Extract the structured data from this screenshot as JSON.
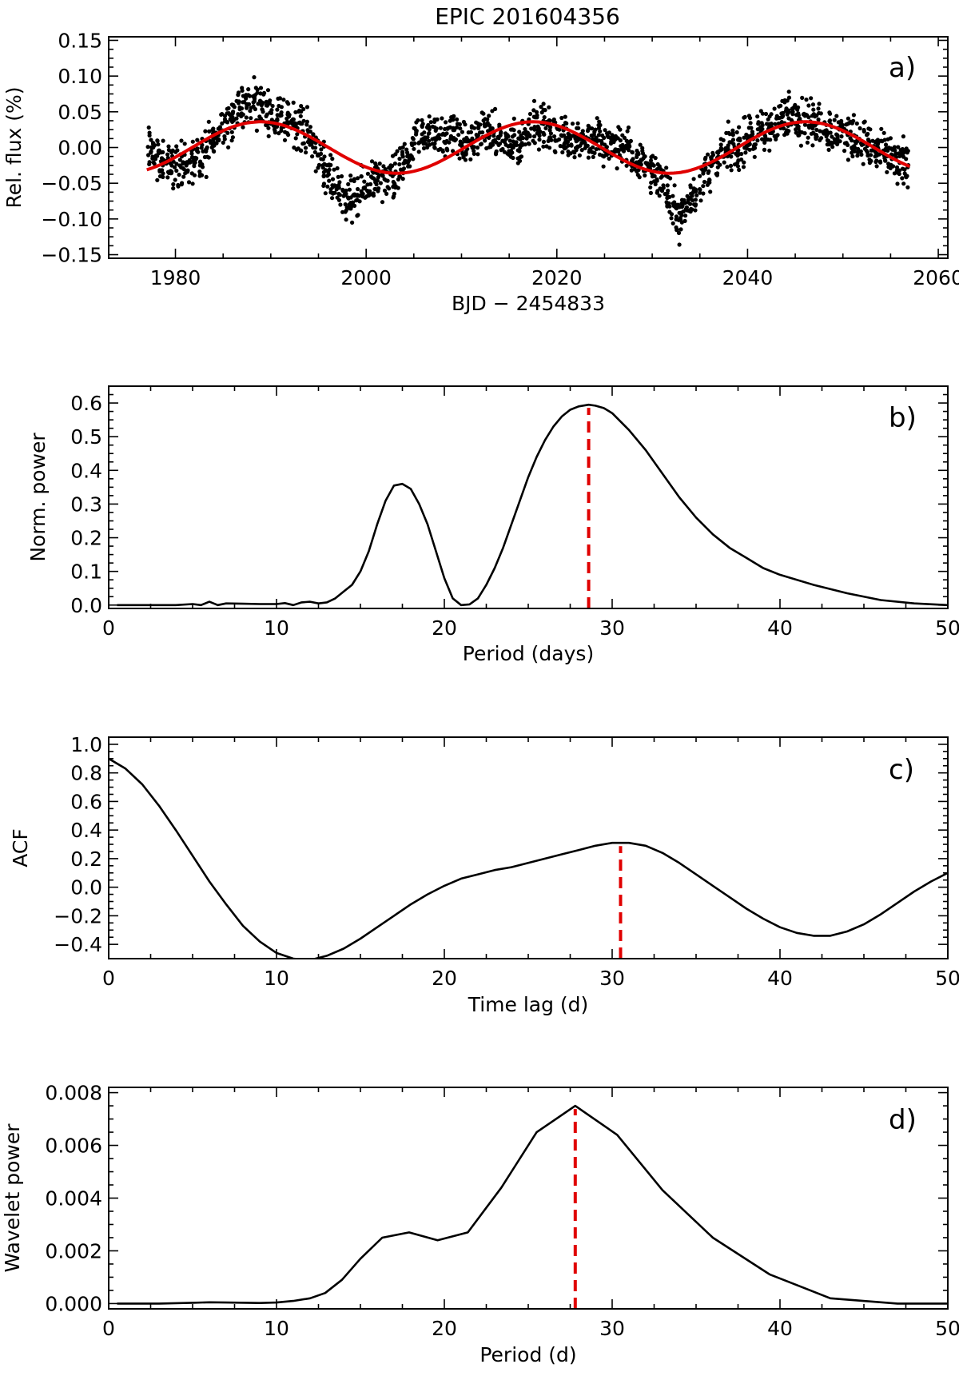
{
  "title": "EPIC 201604356",
  "chart_data": [
    {
      "id": "a",
      "type": "scatter",
      "panel_label": "a)",
      "xlabel": "BJD − 2454833",
      "ylabel": "Rel. flux (%)",
      "xlim": [
        1973,
        2061
      ],
      "ylim": [
        -0.155,
        0.155
      ],
      "xticks": [
        1980,
        2000,
        2020,
        2040,
        2060
      ],
      "xtick_labels": [
        "1980",
        "2000",
        "2020",
        "2040",
        "2060"
      ],
      "yticks": [
        -0.15,
        -0.1,
        -0.05,
        0.0,
        0.05,
        0.1,
        0.15
      ],
      "ytick_labels": [
        "−0.15",
        "−0.10",
        "−0.05",
        "0.00",
        "0.05",
        "0.10",
        "0.15"
      ],
      "series": [
        {
          "name": "light curve",
          "style": "points",
          "color": "#000000",
          "x": [
            1977,
            1978,
            1979,
            1980,
            1981,
            1982,
            1983,
            1984,
            1985,
            1986,
            1987,
            1988,
            1989,
            1990,
            1991,
            1992,
            1993,
            1994,
            1995,
            1996,
            1997,
            1998,
            1999,
            2000,
            2001,
            2002,
            2003,
            2004,
            2005,
            2006,
            2007,
            2008,
            2009,
            2010,
            2011,
            2012,
            2013,
            2014,
            2015,
            2016,
            2017,
            2018,
            2019,
            2020,
            2021,
            2022,
            2023,
            2024,
            2025,
            2026,
            2027,
            2028,
            2029,
            2030,
            2031,
            2032,
            2033,
            2034,
            2035,
            2036,
            2037,
            2038,
            2039,
            2040,
            2041,
            2042,
            2043,
            2044,
            2045,
            2046,
            2047,
            2048,
            2049,
            2050,
            2051,
            2052,
            2053,
            2054,
            2055,
            2056,
            2057
          ],
          "y": [
            0.0,
            -0.01,
            -0.03,
            -0.025,
            -0.02,
            -0.02,
            -0.01,
            0.01,
            0.03,
            0.045,
            0.055,
            0.065,
            0.06,
            0.05,
            0.04,
            0.035,
            0.03,
            0.02,
            -0.01,
            -0.04,
            -0.055,
            -0.07,
            -0.075,
            -0.05,
            -0.045,
            -0.05,
            -0.045,
            -0.02,
            0.0,
            0.02,
            0.02,
            0.01,
            0.025,
            0.005,
            0.0,
            0.03,
            0.02,
            0.01,
            0.005,
            0.0,
            0.035,
            0.03,
            0.025,
            0.02,
            0.015,
            0.015,
            0.01,
            0.01,
            0.005,
            0.0,
            0.0,
            -0.01,
            -0.02,
            -0.03,
            -0.05,
            -0.08,
            -0.1,
            -0.07,
            -0.05,
            -0.03,
            -0.015,
            0.0,
            0.0,
            0.01,
            0.015,
            0.025,
            0.035,
            0.045,
            0.045,
            0.04,
            0.035,
            0.03,
            0.025,
            0.02,
            0.015,
            0.01,
            0.0,
            -0.01,
            -0.015,
            -0.02,
            -0.03
          ]
        },
        {
          "name": "sinusoidal fit",
          "style": "line",
          "color": "#e00000",
          "amplitude": 0.036,
          "period_days": 28.6,
          "peak_at": 2017.5,
          "x_range": [
            1977,
            2057
          ]
        }
      ]
    },
    {
      "id": "b",
      "type": "line",
      "panel_label": "b)",
      "xlabel": "Period (days)",
      "ylabel": "Norm. power",
      "xlim": [
        0,
        50
      ],
      "ylim": [
        -0.01,
        0.65
      ],
      "xticks": [
        0,
        10,
        20,
        30,
        40,
        50
      ],
      "xtick_labels": [
        "0",
        "10",
        "20",
        "30",
        "40",
        "50"
      ],
      "yticks": [
        0.0,
        0.1,
        0.2,
        0.3,
        0.4,
        0.5,
        0.6
      ],
      "ytick_labels": [
        "0.0",
        "0.1",
        "0.2",
        "0.3",
        "0.4",
        "0.5",
        "0.6"
      ],
      "series": [
        {
          "name": "periodogram",
          "x": [
            0.5,
            4,
            5,
            5.5,
            6,
            6.5,
            7,
            8,
            9,
            10,
            10.5,
            11,
            11.5,
            12,
            12.5,
            13,
            13.5,
            14,
            14.5,
            15,
            15.5,
            16,
            16.5,
            17,
            17.5,
            18,
            18.5,
            19,
            19.5,
            20,
            20.5,
            21,
            21.5,
            22,
            22.5,
            23,
            23.5,
            24,
            24.5,
            25,
            25.5,
            26,
            26.5,
            27,
            27.5,
            28,
            28.6,
            29,
            29.5,
            30,
            31,
            32,
            33,
            34,
            35,
            36,
            37,
            38,
            39,
            40,
            42,
            44,
            46,
            48,
            50
          ],
          "y": [
            0.0,
            0.0,
            0.003,
            0.0,
            0.01,
            0.0,
            0.005,
            0.004,
            0.003,
            0.003,
            0.006,
            0.0,
            0.008,
            0.01,
            0.005,
            0.008,
            0.02,
            0.04,
            0.06,
            0.1,
            0.16,
            0.24,
            0.31,
            0.355,
            0.36,
            0.345,
            0.3,
            0.24,
            0.16,
            0.08,
            0.02,
            0.0,
            0.002,
            0.02,
            0.06,
            0.11,
            0.17,
            0.24,
            0.31,
            0.38,
            0.44,
            0.49,
            0.53,
            0.56,
            0.58,
            0.59,
            0.595,
            0.592,
            0.585,
            0.57,
            0.52,
            0.46,
            0.39,
            0.32,
            0.26,
            0.21,
            0.17,
            0.14,
            0.11,
            0.09,
            0.06,
            0.035,
            0.015,
            0.005,
            0.0
          ]
        }
      ],
      "marker_x": 28.6
    },
    {
      "id": "c",
      "type": "line",
      "panel_label": "c)",
      "xlabel": "Time lag (d)",
      "ylabel": "ACF",
      "xlim": [
        0,
        50
      ],
      "ylim": [
        -0.5,
        1.05
      ],
      "xticks": [
        0,
        10,
        20,
        30,
        40,
        50
      ],
      "xtick_labels": [
        "0",
        "10",
        "20",
        "30",
        "40",
        "50"
      ],
      "yticks": [
        -0.4,
        -0.2,
        0.0,
        0.2,
        0.4,
        0.6,
        0.8,
        1.0
      ],
      "ytick_labels": [
        "−0.4",
        "−0.2",
        "0.0",
        "0.2",
        "0.4",
        "0.6",
        "0.8",
        "1.0"
      ],
      "series": [
        {
          "name": "ACF",
          "x": [
            0,
            1,
            2,
            3,
            4,
            5,
            6,
            7,
            8,
            9,
            10,
            11,
            12,
            13,
            14,
            15,
            16,
            17,
            18,
            19,
            20,
            21,
            22,
            23,
            24,
            25,
            26,
            27,
            28,
            29,
            30,
            31,
            32,
            33,
            34,
            35,
            36,
            37,
            38,
            39,
            40,
            41,
            42,
            43,
            44,
            45,
            46,
            47,
            48,
            49,
            50
          ],
          "y": [
            0.9,
            0.83,
            0.72,
            0.57,
            0.4,
            0.22,
            0.04,
            -0.12,
            -0.27,
            -0.38,
            -0.46,
            -0.5,
            -0.51,
            -0.48,
            -0.43,
            -0.36,
            -0.28,
            -0.2,
            -0.12,
            -0.05,
            0.01,
            0.06,
            0.09,
            0.12,
            0.14,
            0.17,
            0.2,
            0.23,
            0.26,
            0.29,
            0.31,
            0.31,
            0.29,
            0.24,
            0.17,
            0.09,
            0.01,
            -0.07,
            -0.15,
            -0.22,
            -0.28,
            -0.32,
            -0.34,
            -0.34,
            -0.31,
            -0.26,
            -0.19,
            -0.11,
            -0.03,
            0.04,
            0.1
          ]
        }
      ],
      "marker_x": 30.5
    },
    {
      "id": "d",
      "type": "line",
      "panel_label": "d)",
      "xlabel": "Period (d)",
      "ylabel": "Wavelet power",
      "xlim": [
        0,
        50
      ],
      "ylim": [
        -0.0002,
        0.0082
      ],
      "xticks": [
        0,
        10,
        20,
        30,
        40,
        50
      ],
      "xtick_labels": [
        "0",
        "10",
        "20",
        "30",
        "40",
        "50"
      ],
      "yticks": [
        0.0,
        0.002,
        0.004,
        0.006,
        0.008
      ],
      "ytick_labels": [
        "0.000",
        "0.002",
        "0.004",
        "0.006",
        "0.008"
      ],
      "series": [
        {
          "name": "global wavelet",
          "x": [
            0.5,
            3,
            5,
            6,
            7,
            9,
            10,
            11,
            12,
            12.9,
            13.9,
            15,
            16.3,
            17.9,
            19.6,
            21.4,
            23.4,
            25.5,
            27.8,
            30.3,
            33,
            36,
            39.4,
            43,
            47,
            50
          ],
          "y": [
            0.0,
            0.0,
            3e-05,
            5e-05,
            4e-05,
            2e-05,
            4e-05,
            0.0001,
            0.0002,
            0.0004,
            0.0009,
            0.0017,
            0.0025,
            0.0027,
            0.0024,
            0.0027,
            0.0044,
            0.0065,
            0.0075,
            0.0064,
            0.0043,
            0.0025,
            0.0011,
            0.0002,
            0.0,
            0.0
          ]
        }
      ],
      "marker_x": 27.8
    }
  ]
}
